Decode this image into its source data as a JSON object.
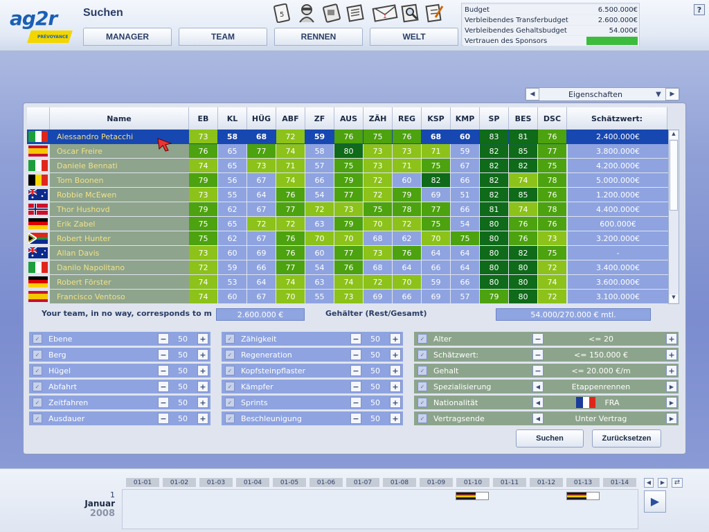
{
  "app": {
    "logo_text": "ag2r",
    "logo_sub": "PRÉVOYANCE",
    "page_title": "Suchen",
    "help_label": "?"
  },
  "nav": {
    "tabs": [
      "MANAGER",
      "TEAM",
      "RENNEN",
      "WELT"
    ]
  },
  "top_icons": [
    "document-icon",
    "cyclist-icon",
    "card-icon",
    "newspaper-icon",
    "mail-icon",
    "magnifier-icon",
    "checklist-icon"
  ],
  "budget": {
    "rows": [
      {
        "label": "Budget",
        "value": "6.500.000€"
      },
      {
        "label": "Verbleibendes Transferbudget",
        "value": "2.600.000€"
      },
      {
        "label": "Verbleibendes Gehaltsbudget",
        "value": "54.000€"
      },
      {
        "label": "Vertrauen des Sponsors",
        "value": ""
      }
    ],
    "sponsor_trust_fraction": 1.0
  },
  "dropdown": {
    "value": "Eigenschaften"
  },
  "table": {
    "columns": [
      "Name",
      "EB",
      "KL",
      "HÜG",
      "ABF",
      "ZF",
      "AUS",
      "ZÄH",
      "REG",
      "KSP",
      "KMP",
      "SP",
      "BES",
      "DSC",
      "Schätzwert:"
    ],
    "rows": [
      {
        "flag": "ITA",
        "name": "Alessandro Petacchi",
        "stats": [
          73,
          58,
          68,
          72,
          59,
          76,
          75,
          76,
          68,
          60,
          83,
          81,
          76
        ],
        "value": "2.400.000€",
        "selected": true
      },
      {
        "flag": "ESP",
        "name": "Oscar Freire",
        "stats": [
          76,
          65,
          77,
          74,
          58,
          80,
          73,
          73,
          71,
          59,
          82,
          85,
          77
        ],
        "value": "3.800.000€"
      },
      {
        "flag": "ITA",
        "name": "Daniele Bennati",
        "stats": [
          74,
          65,
          73,
          71,
          57,
          75,
          73,
          71,
          75,
          67,
          82,
          82,
          75
        ],
        "value": "4.200.000€"
      },
      {
        "flag": "BEL",
        "name": "Tom Boonen",
        "stats": [
          79,
          56,
          67,
          74,
          66,
          79,
          72,
          60,
          82,
          66,
          82,
          74,
          78
        ],
        "value": "5.000.000€"
      },
      {
        "flag": "AUS",
        "name": "Robbie McEwen",
        "stats": [
          73,
          55,
          64,
          76,
          54,
          77,
          72,
          79,
          69,
          51,
          82,
          85,
          76
        ],
        "value": "1.200.000€"
      },
      {
        "flag": "NOR",
        "name": "Thor Hushovd",
        "stats": [
          79,
          62,
          67,
          77,
          72,
          73,
          75,
          78,
          77,
          66,
          81,
          74,
          78
        ],
        "value": "4.400.000€"
      },
      {
        "flag": "GER",
        "name": "Erik Zabel",
        "stats": [
          75,
          65,
          72,
          72,
          63,
          79,
          70,
          72,
          75,
          54,
          80,
          76,
          76
        ],
        "value": "600.000€"
      },
      {
        "flag": "RSA",
        "name": "Robert Hunter",
        "stats": [
          75,
          62,
          67,
          76,
          70,
          70,
          68,
          62,
          70,
          75,
          80,
          76,
          73
        ],
        "value": "3.200.000€"
      },
      {
        "flag": "AUS",
        "name": "Allan Davis",
        "stats": [
          73,
          60,
          69,
          76,
          60,
          77,
          73,
          76,
          64,
          64,
          80,
          82,
          75
        ],
        "value": "-"
      },
      {
        "flag": "ITA",
        "name": "Danilo Napolitano",
        "stats": [
          72,
          59,
          66,
          77,
          54,
          76,
          68,
          64,
          66,
          64,
          80,
          80,
          72
        ],
        "value": "3.400.000€"
      },
      {
        "flag": "GER",
        "name": "Robert Förster",
        "stats": [
          74,
          53,
          64,
          74,
          63,
          74,
          72,
          70,
          59,
          66,
          80,
          80,
          74
        ],
        "value": "3.600.000€"
      },
      {
        "flag": "ESP",
        "name": "Francisco Ventoso",
        "stats": [
          74,
          60,
          67,
          70,
          55,
          73,
          69,
          66,
          69,
          57,
          79,
          80,
          72
        ],
        "value": "3.100.000€"
      }
    ]
  },
  "summary": {
    "team_text": "Your team, in no way, corresponds to my ar",
    "transfer_value": "2.600.000 €",
    "salary_label": "Gehälter (Rest/Gesamt)",
    "salary_value": "54.000/270.000 € mtl."
  },
  "filters_left": [
    {
      "label": "Ebene",
      "value": "50"
    },
    {
      "label": "Berg",
      "value": "50"
    },
    {
      "label": "Hügel",
      "value": "50"
    },
    {
      "label": "Abfahrt",
      "value": "50"
    },
    {
      "label": "Zeitfahren",
      "value": "50"
    },
    {
      "label": "Ausdauer",
      "value": "50"
    }
  ],
  "filters_mid": [
    {
      "label": "Zähigkeit",
      "value": "50"
    },
    {
      "label": "Regeneration",
      "value": "50"
    },
    {
      "label": "Kopfsteinpflaster",
      "value": "50"
    },
    {
      "label": "Kämpfer",
      "value": "50"
    },
    {
      "label": "Sprints",
      "value": "50"
    },
    {
      "label": "Beschleunigung",
      "value": "50"
    }
  ],
  "filters_right": [
    {
      "label": "Alter",
      "value": "<= 20",
      "control": "stepper"
    },
    {
      "label": "Schätzwert:",
      "value": "<= 150.000 €",
      "control": "stepper"
    },
    {
      "label": "Gehalt",
      "value": "<= 20.000 €/m",
      "control": "stepper"
    },
    {
      "label": "Spezialisierung",
      "value": "Etappenrennen",
      "control": "arrows"
    },
    {
      "label": "Nationalität",
      "value": "FRA",
      "control": "arrows",
      "flag": "FRA"
    },
    {
      "label": "Vertragsende",
      "value": "Unter Vertrag",
      "control": "arrows"
    }
  ],
  "buttons": {
    "search": "Suchen",
    "reset": "Zurücksetzen"
  },
  "calendar": {
    "day": "1",
    "month": "Januar",
    "year": "2008",
    "days": [
      "01-01",
      "01-02",
      "01-03",
      "01-04",
      "01-05",
      "01-06",
      "01-07",
      "01-08",
      "01-09",
      "01-10",
      "01-11",
      "01-12",
      "01-13",
      "01-14"
    ],
    "race_days": [
      "01-10",
      "01-13"
    ]
  },
  "colors": {
    "selected_row": "#1747b0",
    "row_bg": "#8ea3e0",
    "name_bg": "#8ea48c",
    "light_green": "#8cc21a",
    "mid_green": "#4da20f",
    "dark_green": "#0f6a1a"
  }
}
